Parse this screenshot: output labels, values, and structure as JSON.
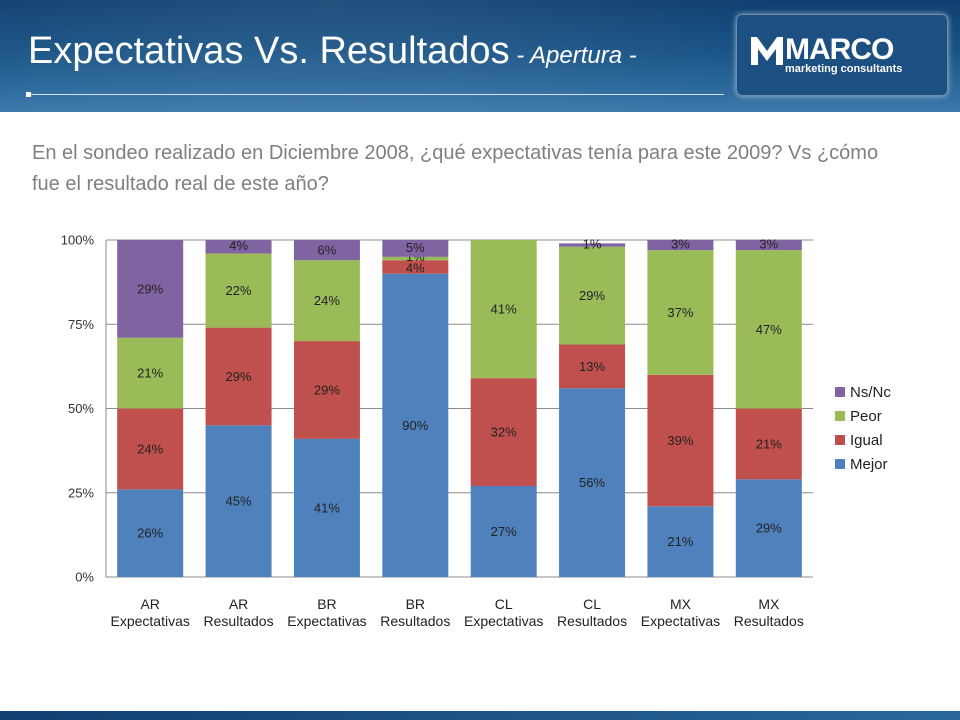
{
  "header": {
    "title_main": "Expectativas Vs. Resultados",
    "title_sub": " - Apertura -",
    "logo_brand": "MARCO",
    "logo_tagline": "marketing consultants"
  },
  "question": "En el sondeo realizado en Diciembre 2008, ¿qué expectativas tenía para este 2009? Vs ¿cómo fue el resultado real de este año?",
  "chart_data": {
    "type": "bar",
    "stacked": true,
    "normalized": true,
    "categories": [
      [
        "AR",
        "Expectativas"
      ],
      [
        "AR",
        "Resultados"
      ],
      [
        "BR",
        "Expectativas"
      ],
      [
        "BR",
        "Resultados"
      ],
      [
        "CL",
        "Expectativas"
      ],
      [
        "CL",
        "Resultados"
      ],
      [
        "MX",
        "Expectativas"
      ],
      [
        "MX",
        "Resultados"
      ]
    ],
    "series": [
      {
        "name": "Mejor",
        "color": "#4f81bd",
        "values": [
          26,
          45,
          41,
          90,
          27,
          56,
          21,
          29
        ],
        "labels": [
          "26%",
          "45%",
          "41%",
          "90%",
          "27%",
          "56%",
          "21%",
          "29%"
        ]
      },
      {
        "name": "Igual",
        "color": "#c0504d",
        "values": [
          24,
          29,
          29,
          4,
          32,
          13,
          39,
          21
        ],
        "labels": [
          "24%",
          "29%",
          "29%",
          "4%",
          "32%",
          "13%",
          "39%",
          "21%"
        ]
      },
      {
        "name": "Peor",
        "color": "#9bbb59",
        "values": [
          21,
          22,
          24,
          1,
          41,
          29,
          37,
          47
        ],
        "labels": [
          "21%",
          "22%",
          "24%",
          "1%",
          "41%",
          "29%",
          "37%",
          "47%"
        ]
      },
      {
        "name": "Ns/Nc",
        "color": "#8064a2",
        "values": [
          29,
          4,
          6,
          5,
          0,
          1,
          3,
          3
        ],
        "labels": [
          "29%",
          "4%",
          "6%",
          "5%",
          "",
          "1%",
          "3%",
          "3%"
        ]
      }
    ],
    "yticks": [
      "0%",
      "25%",
      "50%",
      "75%",
      "100%"
    ],
    "ylim": [
      0,
      100
    ],
    "legend_position": "right",
    "legend_order": [
      "Ns/Nc",
      "Peor",
      "Igual",
      "Mejor"
    ],
    "grid": true
  }
}
